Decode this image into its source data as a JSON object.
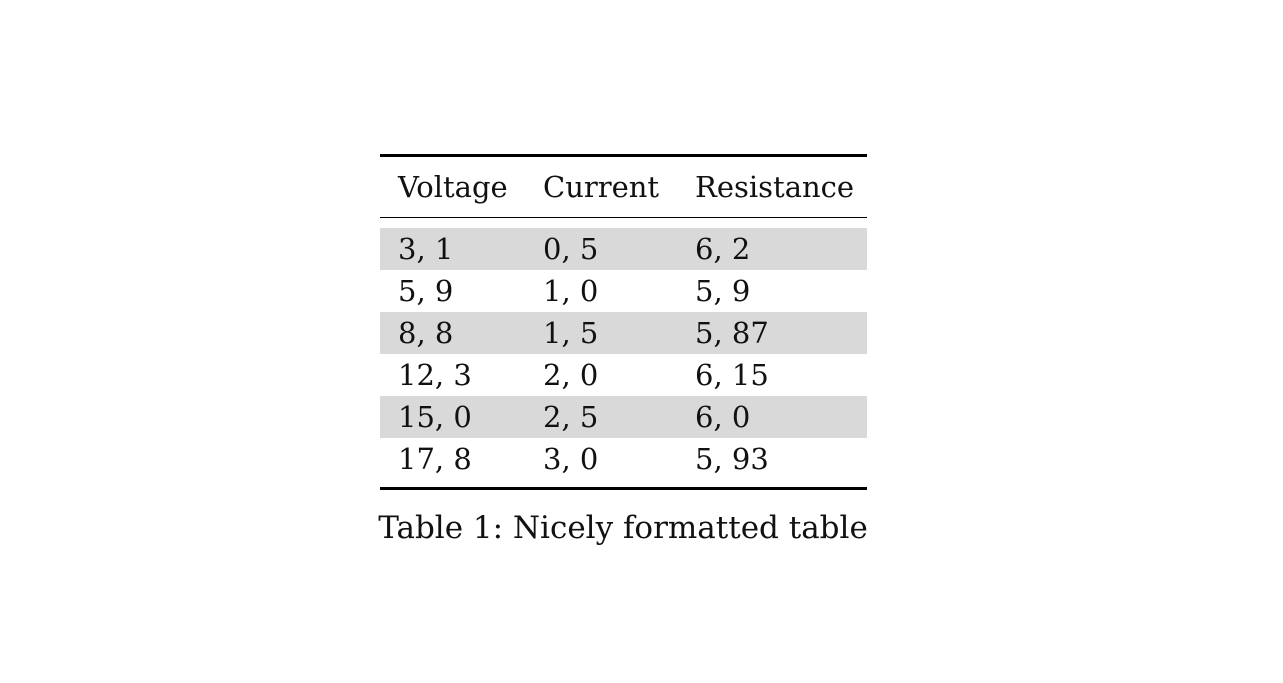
{
  "table": {
    "headers": [
      "Voltage",
      "Current",
      "Resistance"
    ],
    "rows": [
      [
        "3, 1",
        "0, 5",
        "6, 2"
      ],
      [
        "5, 9",
        "1, 0",
        "5, 9"
      ],
      [
        "8, 8",
        "1, 5",
        "5, 87"
      ],
      [
        "12, 3",
        "2, 0",
        "6, 15"
      ],
      [
        "15, 0",
        "2, 5",
        "6, 0"
      ],
      [
        "17, 8",
        "3, 0",
        "5, 93"
      ]
    ],
    "shaded_row_color": "#d9d9d9"
  },
  "caption": "Table 1: Nicely formatted table"
}
